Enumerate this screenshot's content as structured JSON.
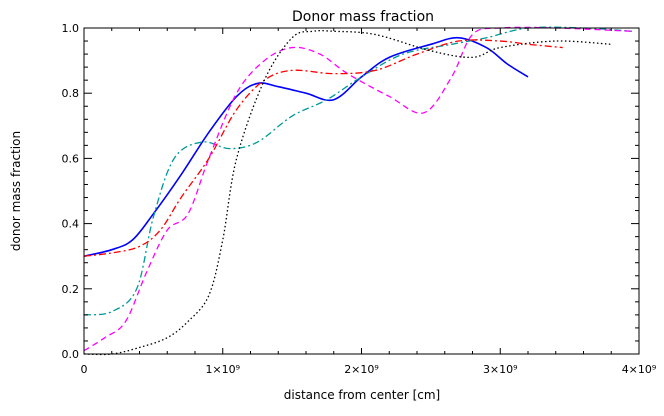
{
  "chart_data": {
    "type": "line",
    "title": "Donor mass fraction",
    "xlabel": "distance from center [cm]",
    "ylabel": "donor mass fraction",
    "xlim": [
      0,
      4000000000
    ],
    "ylim": [
      0,
      1
    ],
    "grid": false,
    "x_ticks": [
      {
        "value": 0,
        "label": "0"
      },
      {
        "value": 1000000000,
        "label": "1×10⁹"
      },
      {
        "value": 2000000000,
        "label": "2×10⁹"
      },
      {
        "value": 3000000000,
        "label": "3×10⁹"
      },
      {
        "value": 4000000000,
        "label": "4×10⁹"
      }
    ],
    "y_ticks": [
      {
        "value": 0.0,
        "label": "0.0"
      },
      {
        "value": 0.2,
        "label": "0.2"
      },
      {
        "value": 0.4,
        "label": "0.4"
      },
      {
        "value": 0.6,
        "label": "0.6"
      },
      {
        "value": 0.8,
        "label": "0.8"
      },
      {
        "value": 1.0,
        "label": "1.0"
      }
    ],
    "series": [
      {
        "name": "solid-blue",
        "color": "#0000ff",
        "style": "solid",
        "x": [
          0,
          200000000,
          350000000,
          500000000,
          700000000,
          900000000,
          1100000000,
          1250000000,
          1400000000,
          1600000000,
          1800000000,
          2000000000,
          2200000000,
          2500000000,
          2700000000,
          2900000000,
          3050000000,
          3200000000
        ],
        "y": [
          0.3,
          0.32,
          0.35,
          0.43,
          0.55,
          0.68,
          0.79,
          0.83,
          0.82,
          0.8,
          0.78,
          0.85,
          0.91,
          0.95,
          0.97,
          0.94,
          0.89,
          0.85
        ]
      },
      {
        "name": "dash-dot-teal",
        "color": "#009999",
        "style": "dashdot",
        "x": [
          0,
          200000000,
          380000000,
          500000000,
          650000000,
          850000000,
          1050000000,
          1250000000,
          1500000000,
          1750000000,
          2000000000,
          2300000000,
          2650000000,
          2900000000,
          3200000000,
          3600000000,
          3950000000
        ],
        "y": [
          0.12,
          0.13,
          0.2,
          0.42,
          0.6,
          0.65,
          0.63,
          0.65,
          0.73,
          0.78,
          0.85,
          0.92,
          0.95,
          0.97,
          1.0,
          1.0,
          0.99
        ]
      },
      {
        "name": "dashed-magenta",
        "color": "#ff00ff",
        "style": "dashed",
        "x": [
          0,
          150000000,
          300000000,
          450000000,
          600000000,
          750000000,
          900000000,
          1100000000,
          1300000000,
          1500000000,
          1700000000,
          1900000000,
          2200000000,
          2450000000,
          2650000000,
          2800000000,
          3000000000,
          3400000000,
          3950000000
        ],
        "y": [
          0.01,
          0.05,
          0.1,
          0.25,
          0.38,
          0.43,
          0.6,
          0.8,
          0.9,
          0.94,
          0.92,
          0.86,
          0.79,
          0.74,
          0.85,
          0.98,
          1.0,
          1.0,
          0.99
        ]
      },
      {
        "name": "dash-dot-red",
        "color": "#ff0000",
        "style": "dashdot",
        "x": [
          0,
          200000000,
          400000000,
          550000000,
          700000000,
          900000000,
          1100000000,
          1300000000,
          1500000000,
          1800000000,
          2100000000,
          2400000000,
          2700000000,
          3000000000,
          3200000000,
          3450000000
        ],
        "y": [
          0.3,
          0.31,
          0.33,
          0.38,
          0.48,
          0.6,
          0.75,
          0.84,
          0.87,
          0.86,
          0.87,
          0.92,
          0.96,
          0.96,
          0.95,
          0.94
        ]
      },
      {
        "name": "dotted-black",
        "color": "#000000",
        "style": "dotted",
        "x": [
          0,
          200000000,
          400000000,
          600000000,
          750000000,
          900000000,
          1000000000,
          1100000000,
          1300000000,
          1500000000,
          1650000000,
          1800000000,
          2100000000,
          2500000000,
          2800000000,
          3000000000,
          3400000000,
          3800000000
        ],
        "y": [
          0.0,
          0.0,
          0.02,
          0.05,
          0.1,
          0.18,
          0.35,
          0.6,
          0.84,
          0.97,
          0.99,
          0.99,
          0.98,
          0.93,
          0.91,
          0.94,
          0.96,
          0.95
        ]
      }
    ]
  }
}
